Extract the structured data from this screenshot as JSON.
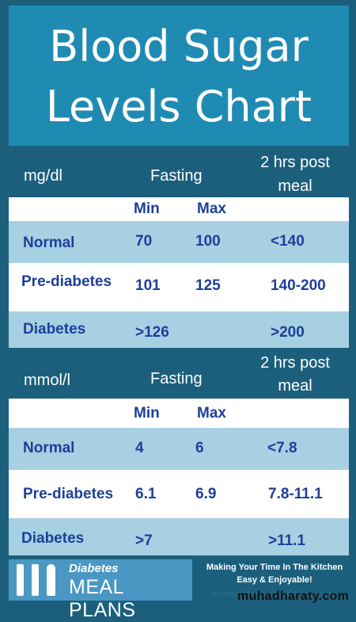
{
  "title": {
    "line1": "Blood Sugar",
    "line2": "Levels Chart"
  },
  "sections": [
    {
      "unit": "mg/dl",
      "fasting": "Fasting",
      "post_line1": "2 hrs post",
      "post_line2": "meal",
      "min_label": "Min",
      "max_label": "Max",
      "rows": [
        {
          "label": "Normal",
          "min": "70",
          "max": "100",
          "post": "<140"
        },
        {
          "label": "Pre-diabetes",
          "min": "101",
          "max": "125",
          "post": "140-200"
        },
        {
          "label": "Diabetes",
          "min": ">126",
          "max": "",
          "post": ">200"
        }
      ]
    },
    {
      "unit": "mmol/l",
      "fasting": "Fasting",
      "post_line1": "2 hrs post",
      "post_line2": "meal",
      "min_label": "Min",
      "max_label": "Max",
      "rows": [
        {
          "label": "Normal",
          "min": "4",
          "max": "6",
          "post": "<7.8"
        },
        {
          "label": "Pre-diabetes",
          "min": "6.1",
          "max": "6.9",
          "post": "7.8-11.1"
        },
        {
          "label": "Diabetes",
          "min": ">7",
          "max": "",
          "post": ">11.1"
        }
      ]
    }
  ],
  "footer": {
    "logo_top": "Diabetes",
    "logo_main": "MEAL PLANS",
    "promo_line1": "Making Your Time In The Kitchen",
    "promo_line2": "Easy & Enjoyable!",
    "url": "www.diabetesmealplans.com",
    "watermark": "muhadharaty.com"
  },
  "colors": {
    "dark_teal": "#1b5f7d",
    "title_blue": "#1f8bb3",
    "row_blue": "#a8d0e3",
    "text_blue": "#1e3f9a"
  }
}
